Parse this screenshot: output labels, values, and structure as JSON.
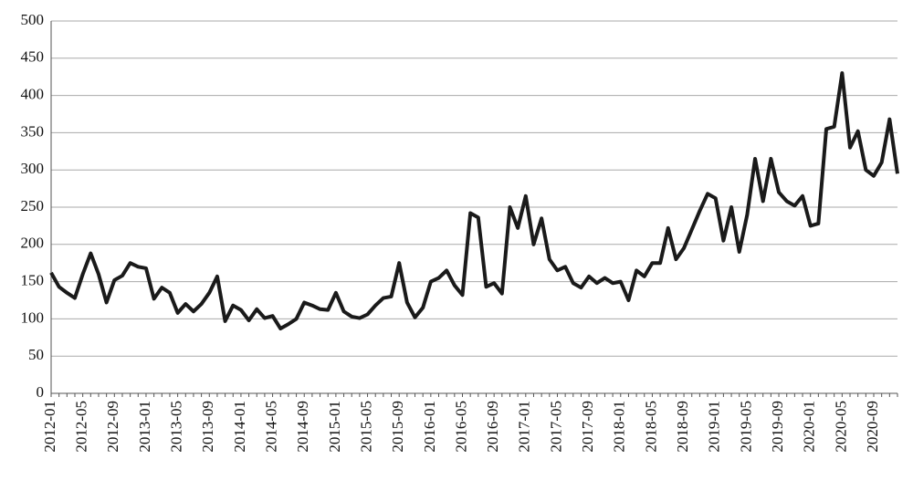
{
  "chart_data": {
    "type": "line",
    "categories": [
      "2012-01",
      null,
      null,
      null,
      "2012-05",
      null,
      null,
      null,
      "2012-09",
      null,
      null,
      null,
      "2013-01",
      null,
      null,
      null,
      "2013-05",
      null,
      null,
      null,
      "2013-09",
      null,
      null,
      null,
      "2014-01",
      null,
      null,
      null,
      "2014-05",
      null,
      null,
      null,
      "2014-09",
      null,
      null,
      null,
      "2015-01",
      null,
      null,
      null,
      "2015-05",
      null,
      null,
      null,
      "2015-09",
      null,
      null,
      null,
      "2016-01",
      null,
      null,
      null,
      "2016-05",
      null,
      null,
      null,
      "2016-09",
      null,
      null,
      null,
      "2017-01",
      null,
      null,
      null,
      "2017-05",
      null,
      null,
      null,
      "2017-09",
      null,
      null,
      null,
      "2018-01",
      null,
      null,
      null,
      "2018-05",
      null,
      null,
      null,
      "2018-09",
      null,
      null,
      null,
      "2019-01",
      null,
      null,
      null,
      "2019-05",
      null,
      null,
      null,
      "2019-09",
      null,
      null,
      null,
      "2020-01",
      null,
      null,
      null,
      "2020-05",
      null,
      null,
      null,
      "2020-09",
      null,
      null,
      null
    ],
    "values": [
      162,
      143,
      135,
      128,
      160,
      188,
      160,
      122,
      152,
      158,
      175,
      170,
      168,
      127,
      142,
      135,
      108,
      120,
      110,
      120,
      135,
      157,
      97,
      118,
      112,
      98,
      113,
      101,
      104,
      87,
      93,
      100,
      122,
      118,
      113,
      112,
      135,
      110,
      103,
      101,
      106,
      118,
      128,
      130,
      175,
      122,
      102,
      115,
      150,
      155,
      165,
      145,
      132,
      242,
      236,
      143,
      148,
      134,
      250,
      222,
      265,
      200,
      235,
      180,
      165,
      170,
      148,
      142,
      157,
      148,
      155,
      148,
      150,
      125,
      165,
      157,
      175,
      175,
      222,
      180,
      195,
      220,
      245,
      268,
      262,
      205,
      250,
      190,
      240,
      315,
      258,
      315,
      270,
      258,
      252,
      265,
      225,
      228,
      355,
      358,
      430,
      330,
      352,
      300,
      292,
      310,
      368,
      295
    ],
    "color": "#1a1a1a",
    "ylim": [
      0,
      500
    ],
    "yticks": [
      0,
      50,
      100,
      150,
      200,
      250,
      300,
      350,
      400,
      450,
      500
    ],
    "grid": true
  }
}
